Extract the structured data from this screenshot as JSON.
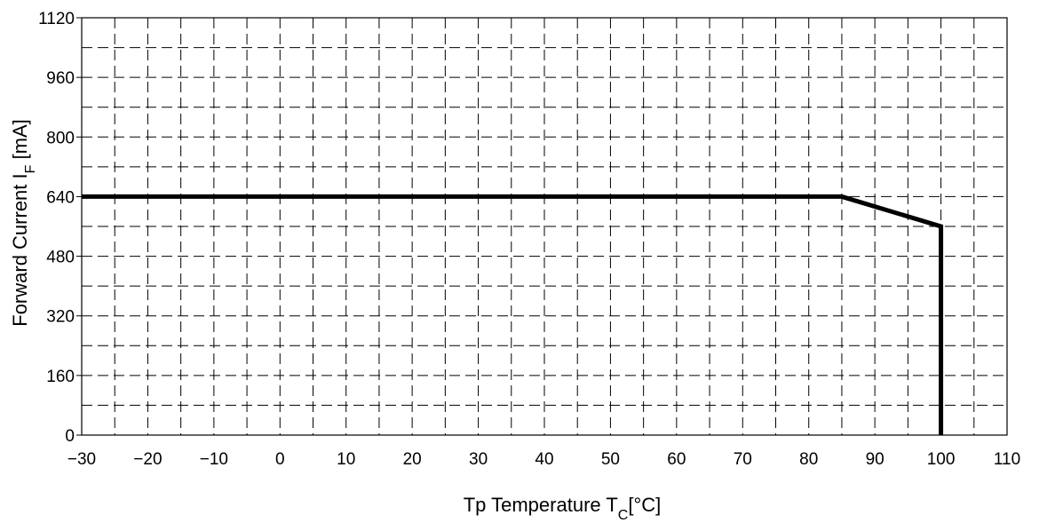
{
  "chart_data": {
    "type": "line",
    "title": "",
    "xlabel": {
      "main": "Tp Temperature T",
      "sub": "C",
      "unit": "[°C]"
    },
    "ylabel": {
      "main": "Forward Current I",
      "sub": "F",
      "unit": " [mA]"
    },
    "xlim": [
      -30,
      110
    ],
    "ylim": [
      0,
      1120
    ],
    "x_ticks": [
      -30,
      -20,
      -10,
      0,
      10,
      20,
      30,
      40,
      50,
      60,
      70,
      80,
      90,
      100,
      110
    ],
    "y_ticks": [
      0,
      160,
      320,
      480,
      640,
      800,
      960,
      1120
    ],
    "x_grid_step": 5,
    "y_grid_step": 80,
    "grid": "dashed",
    "series": [
      {
        "x": [
          -30,
          85,
          100,
          100
        ],
        "y": [
          640,
          640,
          560,
          0
        ],
        "color": "#000000"
      }
    ]
  }
}
